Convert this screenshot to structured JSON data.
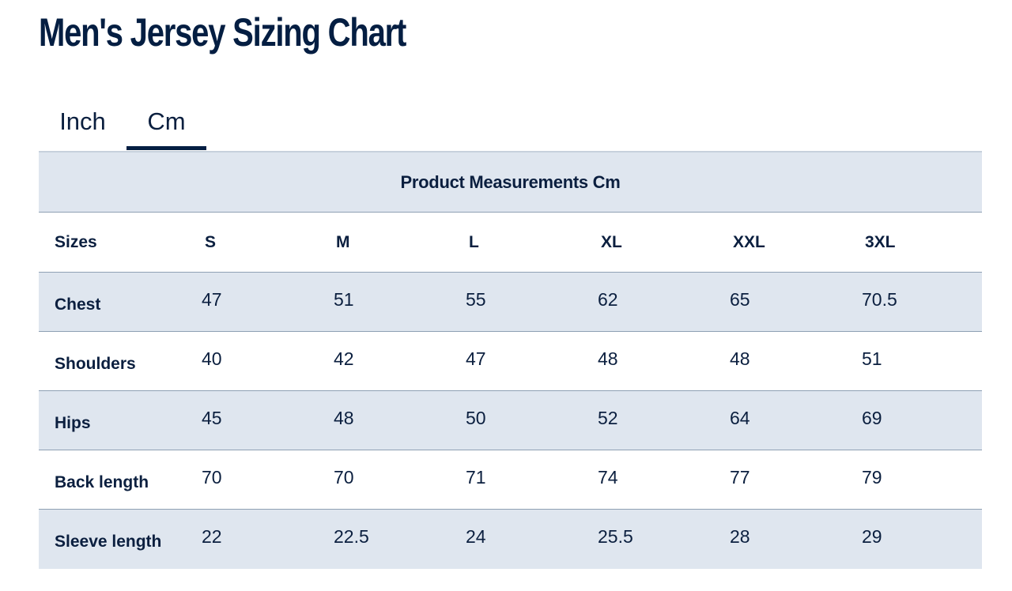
{
  "page": {
    "title": "Men's Jersey Sizing Chart"
  },
  "unit_tabs": [
    {
      "label": "Inch",
      "active": false
    },
    {
      "label": "Cm",
      "active": true
    }
  ],
  "table": {
    "caption": "Product Measurements Cm",
    "header_label": "Sizes",
    "sizes": [
      "S",
      "M",
      "L",
      "XL",
      "XXL",
      "3XL"
    ],
    "rows": [
      {
        "label": "Chest",
        "values": [
          "47",
          "51",
          "55",
          "62",
          "65",
          "70.5"
        ]
      },
      {
        "label": "Shoulders",
        "values": [
          "40",
          "42",
          "47",
          "48",
          "48",
          "51"
        ]
      },
      {
        "label": "Hips",
        "values": [
          "45",
          "48",
          "50",
          "52",
          "64",
          "69"
        ]
      },
      {
        "label": "Back length",
        "values": [
          "70",
          "70",
          "71",
          "74",
          "77",
          "79"
        ]
      },
      {
        "label": "Sleeve length",
        "values": [
          "22",
          "22.5",
          "24",
          "25.5",
          "28",
          "29"
        ]
      }
    ]
  },
  "colors": {
    "navy": "#041e42",
    "row_shade": "#dfe6ef",
    "divider": "#8ea0b3"
  }
}
